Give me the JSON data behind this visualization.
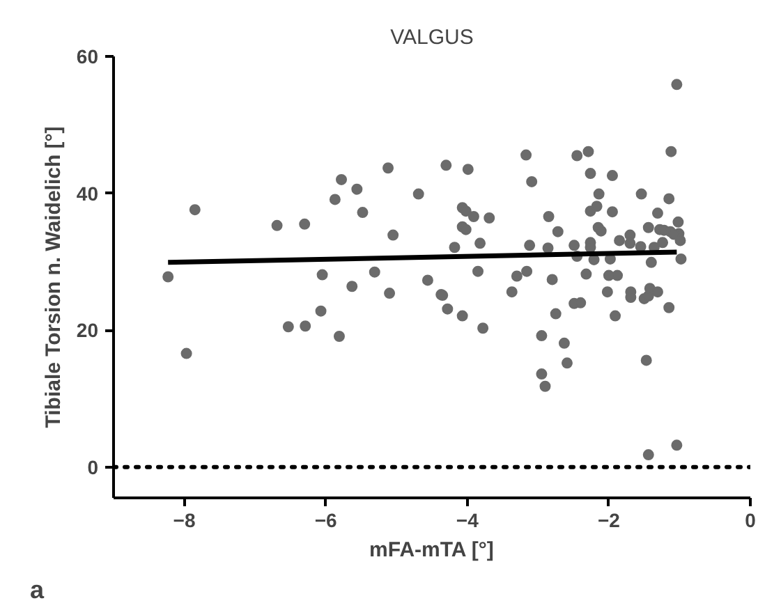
{
  "chart_data": {
    "type": "scatter",
    "title": "VALGUS",
    "xlabel": "mFA-mTA [°]",
    "ylabel": "Tibiale Torsion n. Waidelich [°]",
    "annotations": [
      "a"
    ],
    "xlim": [
      -9,
      0
    ],
    "ylim": [
      -4.5,
      60
    ],
    "xticks": [
      -8,
      -6,
      -4,
      -2,
      0
    ],
    "yticks": [
      0,
      20,
      40,
      60
    ],
    "grid": false,
    "marker": "circle",
    "ref_lines": [
      {
        "axis": "y",
        "value": 0,
        "label": null,
        "color": "#000000",
        "line_style": "dotted"
      }
    ],
    "series": [
      {
        "color": "#6b6b6b",
        "x": [
          -8.23,
          -7.97,
          -7.85,
          -6.69,
          -6.53,
          -6.3,
          -6.29,
          -6.07,
          -6.05,
          -5.87,
          -5.81,
          -5.78,
          -5.63,
          -5.56,
          -5.48,
          -5.31,
          -5.12,
          -5.1,
          -5.05,
          -4.69,
          -4.56,
          -4.37,
          -4.35,
          -4.3,
          -4.28,
          -4.18,
          -4.07,
          -4.07,
          -4.02,
          -4.07,
          -4.02,
          -3.99,
          -3.91,
          -3.85,
          -3.82,
          -3.78,
          -3.69,
          -3.37,
          -3.3,
          -3.17,
          -3.16,
          -3.12,
          -3.09,
          -2.95,
          -2.95,
          -2.9,
          -2.86,
          -2.85,
          -2.8,
          -2.75,
          -2.72,
          -2.63,
          -2.59,
          -2.49,
          -2.45,
          -2.45,
          -2.49,
          -2.4,
          -2.32,
          -2.29,
          -2.26,
          -2.26,
          -2.26,
          -2.26,
          -2.21,
          -2.17,
          -2.14,
          -2.15,
          -2.11,
          -2.02,
          -1.98,
          -2.0,
          -1.95,
          -1.95,
          -1.91,
          -1.88,
          -1.85,
          -1.7,
          -1.7,
          -1.69,
          -1.69,
          -1.54,
          -1.55,
          -1.5,
          -1.47,
          -1.44,
          -1.44,
          -1.44,
          -1.42,
          -1.4,
          -1.36,
          -1.31,
          -1.31,
          -1.28,
          -1.24,
          -1.22,
          -1.15,
          -1.15,
          -1.13,
          -1.12,
          -1.04,
          -1.04,
          -1.02,
          -1.01,
          -0.99,
          -0.98,
          -1.08
        ],
        "values": [
          27.8,
          16.6,
          37.6,
          35.3,
          20.5,
          35.5,
          20.6,
          22.8,
          28.1,
          39.1,
          19.1,
          42.0,
          26.4,
          40.6,
          37.2,
          28.5,
          43.7,
          25.4,
          33.9,
          39.9,
          27.3,
          25.2,
          25.1,
          44.1,
          23.1,
          32.1,
          22.1,
          37.9,
          37.4,
          35.1,
          34.7,
          43.5,
          36.6,
          28.6,
          32.7,
          20.3,
          36.4,
          25.6,
          27.9,
          45.6,
          28.6,
          32.4,
          41.7,
          19.2,
          13.6,
          11.8,
          32.0,
          36.6,
          27.4,
          22.4,
          34.4,
          18.1,
          15.2,
          32.4,
          30.8,
          45.5,
          23.9,
          24.0,
          28.2,
          46.1,
          42.9,
          37.4,
          32.8,
          32.1,
          30.3,
          38.1,
          39.9,
          35.0,
          34.5,
          25.6,
          30.4,
          28.0,
          42.6,
          37.3,
          22.1,
          28.0,
          33.1,
          33.9,
          32.7,
          25.6,
          24.8,
          39.9,
          32.2,
          24.6,
          15.6,
          35.0,
          25.0,
          1.8,
          26.1,
          29.9,
          32.1,
          25.6,
          37.1,
          34.7,
          32.8,
          34.6,
          23.3,
          39.2,
          34.4,
          46.1,
          55.9,
          3.2,
          35.8,
          34.1,
          33.1,
          30.4,
          34.0
        ]
      },
      {
        "type": "line",
        "marker": "none",
        "color": "#000000",
        "line_style": "solid",
        "x": [
          -8.23,
          -1.04
        ],
        "values": [
          29.9,
          31.4
        ]
      }
    ]
  }
}
